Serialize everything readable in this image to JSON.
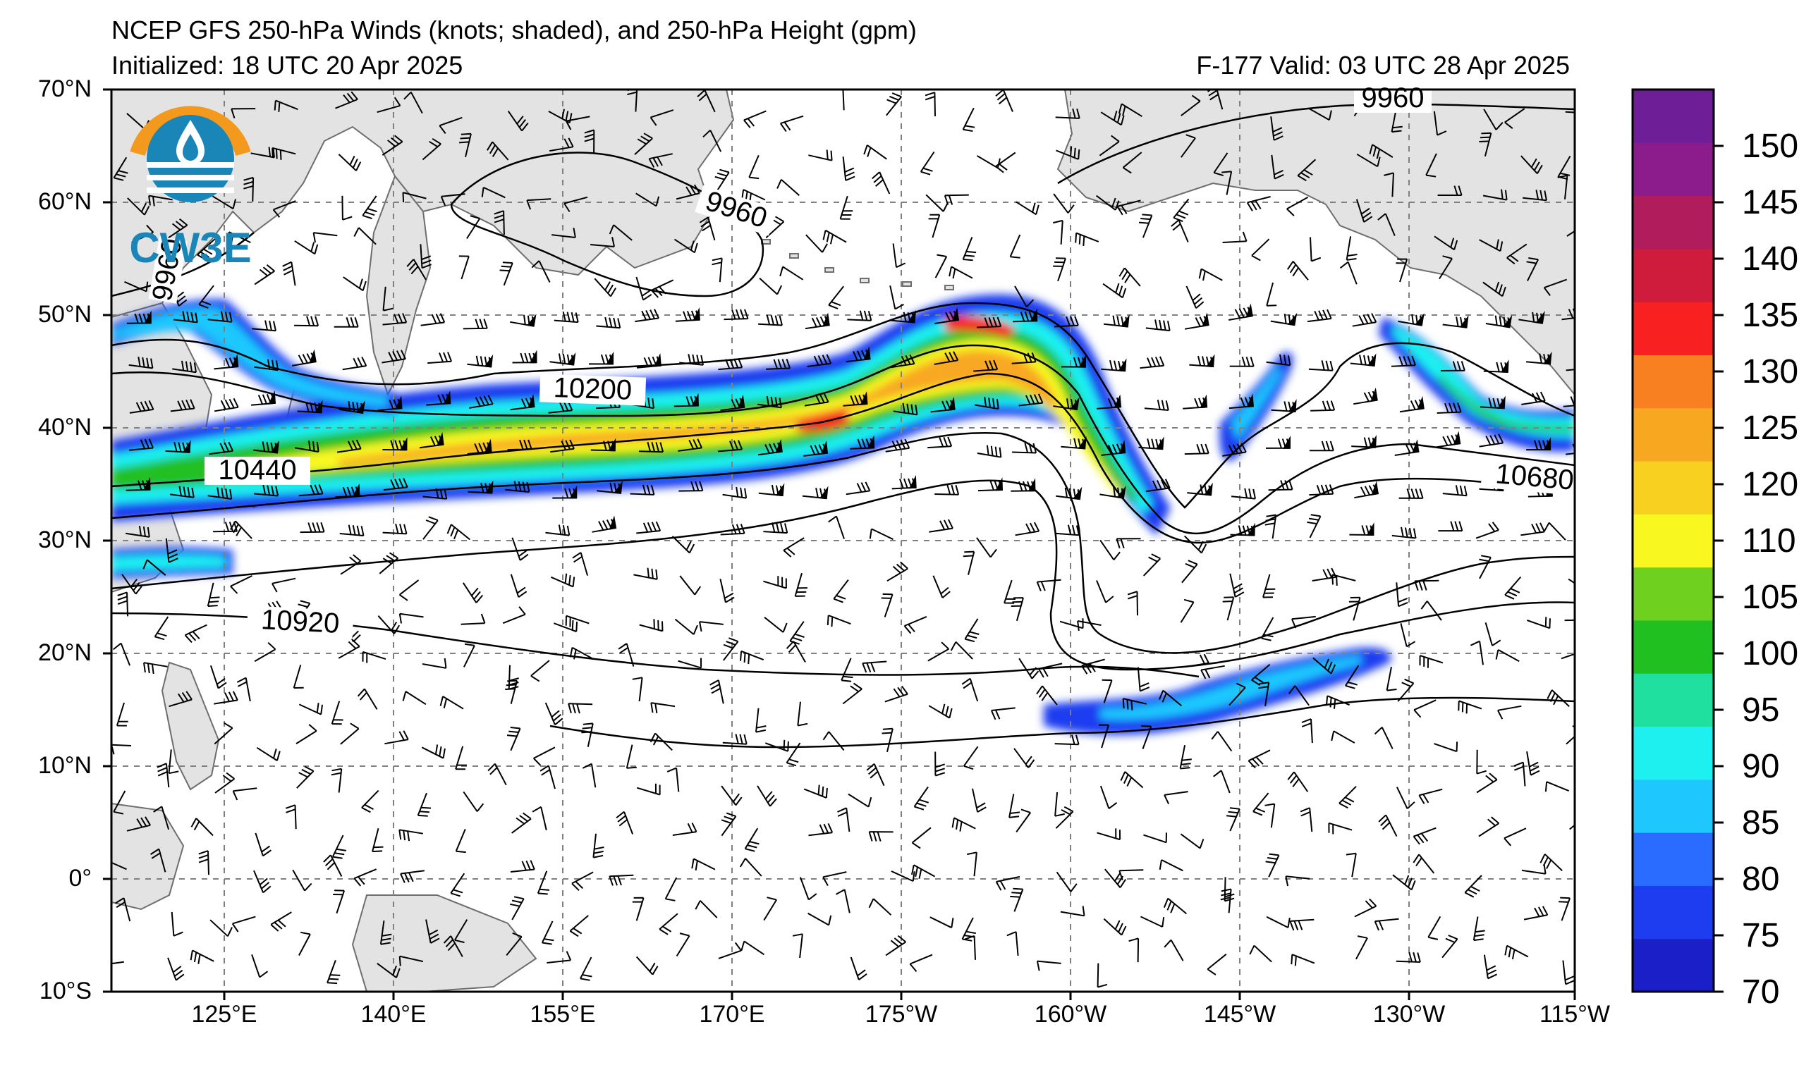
{
  "header": {
    "title": "NCEP GFS 250-hPa Winds (knots; shaded), and 250-hPa Height (gpm)",
    "initialized": "Initialized: 18 UTC 20 Apr 2025",
    "valid": "F-177  Valid: 03 UTC 28 Apr 2025"
  },
  "logo": {
    "text": "CW3E",
    "icon": "water-drop-icon"
  },
  "axes": {
    "lat_labels": [
      "70°N",
      "60°N",
      "50°N",
      "40°N",
      "30°N",
      "20°N",
      "10°N",
      "0°",
      "10°S"
    ],
    "lon_labels": [
      "125°E",
      "140°E",
      "155°E",
      "170°E",
      "175°W",
      "160°W",
      "145°W",
      "130°W",
      "115°W"
    ]
  },
  "contours": {
    "labels": [
      "9960",
      "9960",
      "9960",
      "10200",
      "10440",
      "10680",
      "10920"
    ]
  },
  "colorbar": {
    "levels": [
      "70",
      "75",
      "80",
      "85",
      "90",
      "95",
      "100",
      "105",
      "110",
      "120",
      "125",
      "130",
      "135",
      "140",
      "145",
      "150"
    ],
    "colors": [
      "#1a1fc8",
      "#1e3cf0",
      "#2a6cff",
      "#1ec8ff",
      "#1ef0f0",
      "#20e0a0",
      "#20c020",
      "#70d020",
      "#f8f820",
      "#f8d020",
      "#f8a820",
      "#f88020",
      "#f82020",
      "#d01c3c",
      "#b01c5c",
      "#8c1c8c",
      "#6e1e96"
    ]
  },
  "colors": {
    "land": "#e3e3e3",
    "ocean": "#ffffff",
    "coast": "#6e6e6e",
    "grid": "#808080"
  }
}
